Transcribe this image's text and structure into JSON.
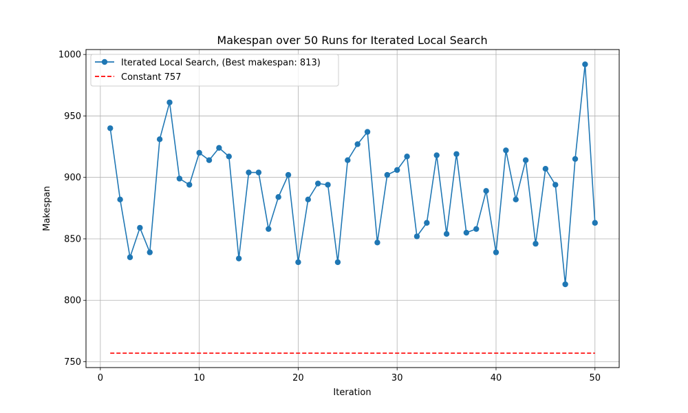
{
  "chart_data": {
    "type": "line",
    "title": "Makespan over 50 Runs for Iterated Local Search",
    "xlabel": "Iteration",
    "ylabel": "Makespan",
    "xlim": [
      -1.45,
      52.45
    ],
    "ylim": [
      745.25,
      1004.0
    ],
    "xticks": [
      0,
      10,
      20,
      30,
      40,
      50
    ],
    "yticks": [
      750,
      800,
      850,
      900,
      950,
      1000
    ],
    "grid": true,
    "legend_position": "top-left",
    "x": [
      1,
      2,
      3,
      4,
      5,
      6,
      7,
      8,
      9,
      10,
      11,
      12,
      13,
      14,
      15,
      16,
      17,
      18,
      19,
      20,
      21,
      22,
      23,
      24,
      25,
      26,
      27,
      28,
      29,
      30,
      31,
      32,
      33,
      34,
      35,
      36,
      37,
      38,
      39,
      40,
      41,
      42,
      43,
      44,
      45,
      46,
      47,
      48,
      49,
      50
    ],
    "series": [
      {
        "name": "Iterated Local Search, (Best makespan: 813)",
        "style": "line-marker",
        "color": "#1f77b4",
        "values": [
          940,
          882,
          835,
          859,
          839,
          931,
          961,
          899,
          894,
          920,
          914,
          924,
          917,
          834,
          904,
          904,
          858,
          884,
          902,
          831,
          882,
          895,
          894,
          831,
          914,
          927,
          937,
          847,
          902,
          906,
          917,
          852,
          863,
          918,
          854,
          919,
          855,
          858,
          889,
          839,
          922,
          882,
          914,
          846,
          907,
          894,
          813,
          915,
          992,
          863
        ]
      },
      {
        "name": "Constant 757",
        "style": "dashed",
        "color": "#ff0000",
        "x": [
          1,
          50
        ],
        "values": [
          757,
          757
        ]
      }
    ]
  }
}
